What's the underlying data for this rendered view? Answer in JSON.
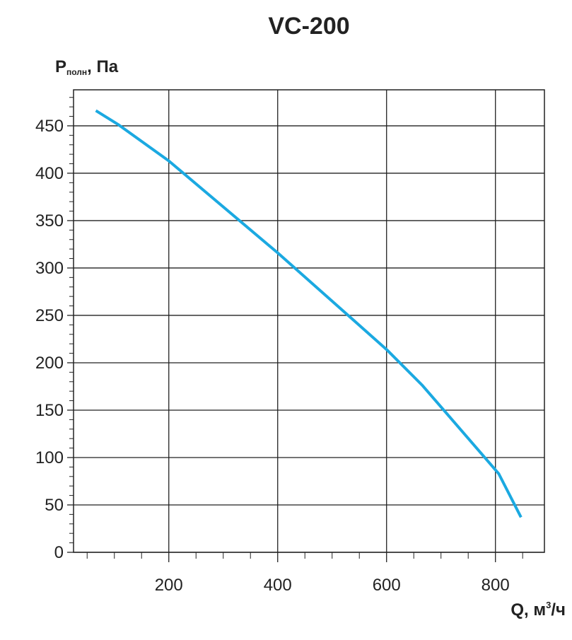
{
  "chart_data": {
    "type": "line",
    "title": "VC-200",
    "ylabel": {
      "main": "P",
      "sub": "полн",
      "rest": ", Па"
    },
    "xlabel": {
      "main": "Q, м",
      "sup": "3",
      "rest": "/ч"
    },
    "x": [
      66,
      108,
      200,
      400,
      600,
      666,
      800,
      806,
      847
    ],
    "series": [
      {
        "color": "#1ba9e1",
        "values": [
          466,
          451,
          413,
          316,
          214,
          176,
          87,
          83,
          37
        ]
      }
    ],
    "xlim": [
      25,
      890
    ],
    "ylim": [
      0,
      488
    ],
    "xticks": [
      200,
      400,
      600,
      800
    ],
    "yticks": [
      0,
      50,
      100,
      150,
      200,
      250,
      300,
      350,
      400,
      450
    ],
    "xminorticks": [
      50,
      100,
      150,
      250,
      300,
      350,
      450,
      500,
      550,
      650,
      700,
      750,
      850
    ],
    "yminorticks": [
      10,
      20,
      30,
      40,
      60,
      70,
      80,
      90,
      110,
      120,
      130,
      140,
      160,
      170,
      180,
      190,
      210,
      220,
      230,
      240,
      260,
      270,
      280,
      290,
      310,
      320,
      330,
      340,
      360,
      370,
      380,
      390,
      410,
      420,
      430,
      440,
      460,
      470,
      480
    ],
    "grid": true
  }
}
